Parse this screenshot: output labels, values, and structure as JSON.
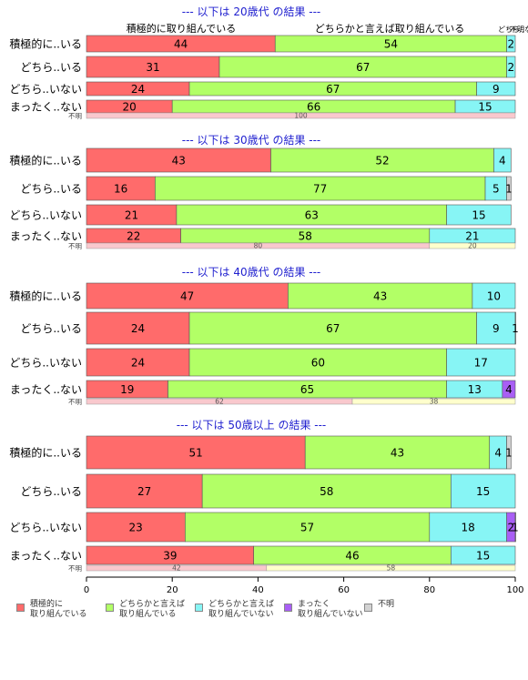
{
  "chart_data": {
    "type": "bar",
    "orientation": "horizontal",
    "stacked": true,
    "xlim": [
      0,
      100
    ],
    "x_ticks": [
      0,
      20,
      40,
      60,
      80,
      100
    ],
    "categories": [
      "積極的に..いる",
      "どちら..いる",
      "どちら..いない",
      "まったく..ない"
    ],
    "unknown_label": "不明",
    "legend": {
      "placement": "bottom",
      "items": [
        {
          "label": "積極的に\n取り組んでいる",
          "color": "#ff6b6b"
        },
        {
          "label": "どちらかと言えば\n取り組んでいる",
          "color": "#b2ff66"
        },
        {
          "label": "どちらかと言えば\n取り組んでいない",
          "color": "#87f5f5"
        },
        {
          "label": "まったく\n取り組んでいない",
          "color": "#a95ff5"
        },
        {
          "label": "不明",
          "color": "#d3d3d3"
        }
      ]
    },
    "unknown_colors": [
      "#f9c8cd",
      "#ffffcc",
      "#d6f8f8"
    ],
    "panels": [
      {
        "title": "--- 以下は 20歳代 の結果 ---",
        "top_labels": [
          "積極的に取り組んでいる",
          "どちらかと言えば取り組んでいる",
          "どちら..ない",
          "不明"
        ],
        "rows": [
          [
            44,
            54,
            2,
            0,
            0
          ],
          [
            31,
            67,
            2,
            0,
            0
          ],
          [
            24,
            67,
            9,
            0,
            0
          ],
          [
            20,
            66,
            15,
            0,
            0
          ]
        ],
        "unknown": [
          100
        ]
      },
      {
        "title": "--- 以下は 30歳代 の結果 ---",
        "top_labels": [],
        "rows": [
          [
            43,
            52,
            4,
            0,
            0
          ],
          [
            16,
            77,
            5,
            0,
            1
          ],
          [
            21,
            63,
            15,
            0,
            0
          ],
          [
            22,
            58,
            21,
            0,
            0
          ]
        ],
        "unknown": [
          80,
          20
        ]
      },
      {
        "title": "--- 以下は 40歳代 の結果 ---",
        "top_labels": [],
        "rows": [
          [
            47,
            43,
            10,
            0,
            0
          ],
          [
            24,
            67,
            9,
            0,
            1
          ],
          [
            24,
            60,
            17,
            0,
            0
          ],
          [
            19,
            65,
            13,
            4,
            0
          ]
        ],
        "unknown": [
          62,
          38
        ]
      },
      {
        "title": "--- 以下は 50歳以上 の結果 ---",
        "top_labels": [],
        "rows": [
          [
            51,
            43,
            4,
            0,
            1
          ],
          [
            27,
            58,
            15,
            0,
            0
          ],
          [
            23,
            57,
            18,
            2,
            1
          ],
          [
            39,
            46,
            15,
            0,
            0
          ]
        ],
        "unknown": [
          42,
          58
        ]
      }
    ]
  }
}
